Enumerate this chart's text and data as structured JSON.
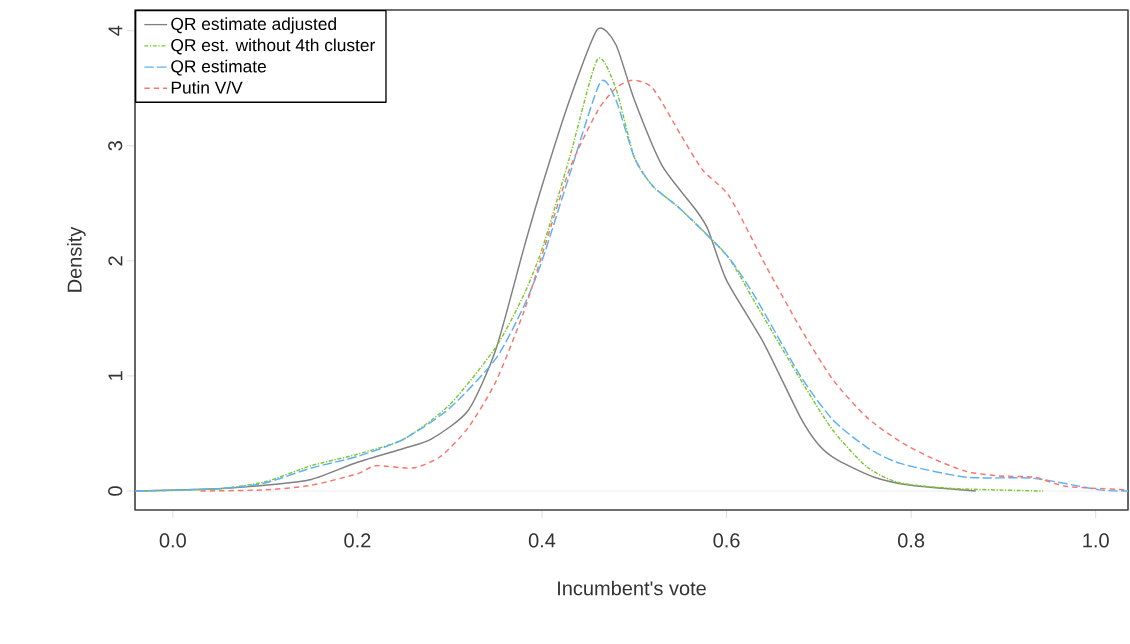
{
  "chart_data": {
    "type": "line",
    "xlabel": "Incumbent's vote",
    "ylabel": "Density",
    "xlim": [
      -0.041,
      1.035
    ],
    "ylim": [
      -0.165,
      4.18
    ],
    "xticks": [
      {
        "value": 0,
        "label": "0.0"
      },
      {
        "value": 0.2,
        "label": "0.2"
      },
      {
        "value": 0.4,
        "label": "0.4"
      },
      {
        "value": 0.6,
        "label": "0.6"
      },
      {
        "value": 0.8,
        "label": "0.8"
      },
      {
        "value": 1,
        "label": "1.0"
      }
    ],
    "yticks": [
      0,
      1,
      2,
      3,
      4
    ],
    "legend": "top left",
    "grid": false,
    "marker": "none",
    "ref_lines": [
      {
        "axis": "y",
        "value": 0,
        "color": "#e8e8e8"
      }
    ],
    "series": [
      {
        "name": "QR estimate adjusted",
        "color": "#808080",
        "line_style": "solid",
        "x": [
          -0.04,
          0.05,
          0.1,
          0.15,
          0.2,
          0.25,
          0.28,
          0.32,
          0.35,
          0.38,
          0.4,
          0.43,
          0.46,
          0.48,
          0.5,
          0.53,
          0.567,
          0.58,
          0.6,
          0.64,
          0.68,
          0.7,
          0.72,
          0.76,
          0.8,
          0.87
        ],
        "values": [
          0,
          0.02,
          0.05,
          0.1,
          0.25,
          0.37,
          0.45,
          0.7,
          1.23,
          2.1,
          2.65,
          3.4,
          4.01,
          3.88,
          3.4,
          2.83,
          2.44,
          2.27,
          1.83,
          1.29,
          0.64,
          0.4,
          0.27,
          0.12,
          0.05,
          0
        ]
      },
      {
        "name": "QR est. without 4th cluster",
        "color": "#7cc832",
        "line_style": "dashed",
        "x": [
          -0.03,
          0.05,
          0.1,
          0.15,
          0.2,
          0.25,
          0.3,
          0.35,
          0.38,
          0.4,
          0.43,
          0.46,
          0.48,
          0.5,
          0.52,
          0.55,
          0.6,
          0.63,
          0.68,
          0.715,
          0.752,
          0.788,
          0.85,
          0.943
        ],
        "values": [
          0,
          0.02,
          0.08,
          0.22,
          0.32,
          0.45,
          0.75,
          1.25,
          1.7,
          2.1,
          2.9,
          3.75,
          3.5,
          2.9,
          2.65,
          2.45,
          2.05,
          1.65,
          0.97,
          0.53,
          0.21,
          0.07,
          0.02,
          0
        ]
      },
      {
        "name": "QR estimate",
        "color": "#5fb0f5",
        "line_style": "dashed",
        "x": [
          -0.04,
          0.05,
          0.1,
          0.15,
          0.2,
          0.25,
          0.3,
          0.35,
          0.38,
          0.4,
          0.43,
          0.463,
          0.48,
          0.5,
          0.52,
          0.55,
          0.6,
          0.63,
          0.68,
          0.715,
          0.752,
          0.788,
          0.86,
          0.933,
          1.004,
          1.035
        ],
        "values": [
          0,
          0.02,
          0.07,
          0.2,
          0.3,
          0.45,
          0.72,
          1.15,
          1.6,
          2.0,
          2.75,
          3.55,
          3.4,
          2.9,
          2.65,
          2.45,
          2.05,
          1.7,
          1.0,
          0.62,
          0.38,
          0.24,
          0.12,
          0.11,
          0.01,
          0
        ]
      },
      {
        "name": "Putin V/V",
        "color": "#f8766d",
        "line_style": "dashed",
        "x": [
          0.03,
          0.1,
          0.15,
          0.2,
          0.22,
          0.26,
          0.29,
          0.32,
          0.35,
          0.38,
          0.4,
          0.43,
          0.46,
          0.48,
          0.498,
          0.52,
          0.55,
          0.574,
          0.603,
          0.643,
          0.679,
          0.715,
          0.752,
          0.788,
          0.824,
          0.86,
          0.896,
          0.933,
          0.969,
          1.035
        ],
        "values": [
          0,
          0.01,
          0.05,
          0.15,
          0.22,
          0.2,
          0.3,
          0.55,
          0.95,
          1.55,
          2.05,
          2.8,
          3.3,
          3.5,
          3.57,
          3.5,
          3.1,
          2.79,
          2.56,
          1.95,
          1.43,
          0.97,
          0.64,
          0.43,
          0.28,
          0.17,
          0.13,
          0.12,
          0.04,
          0.01
        ]
      }
    ]
  }
}
